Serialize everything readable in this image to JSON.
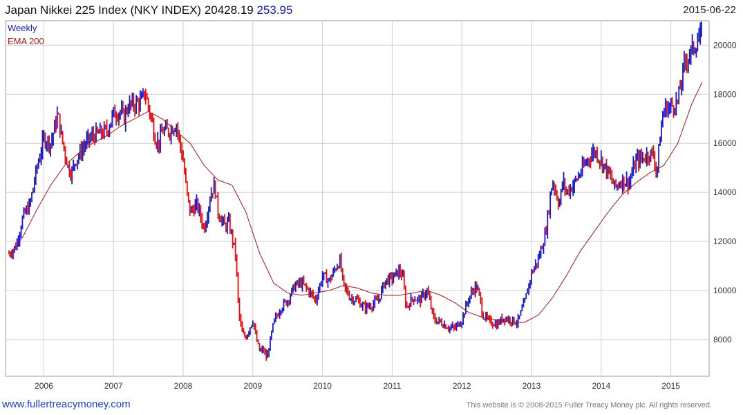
{
  "header": {
    "title": "Japan Nikkei 225 Index (NKY INDEX) 20428.19",
    "change": "253.95",
    "date": "2015-06-22"
  },
  "legend": {
    "weekly": "Weekly",
    "ema": "EMA 200"
  },
  "footer": {
    "link": "www.fullertreacymoney.com",
    "notice": "This website is © 2008-2015 Fuller Treacy Money plc. All rights reserved."
  },
  "colors": {
    "up": "#1a1acc",
    "down": "#e01010",
    "ema": "#a01818",
    "grid": "#cfcfcf"
  },
  "chart_data": {
    "type": "line",
    "ylim": [
      6500,
      21000
    ],
    "xlim": [
      2005.45,
      2015.55
    ],
    "grid": true,
    "legend_position": "top-left",
    "y_ticks": [
      8000,
      10000,
      12000,
      14000,
      16000,
      18000,
      20000
    ],
    "x_ticks": [
      {
        "label": "2006",
        "value": 2006.0
      },
      {
        "label": "2007",
        "value": 2007.0
      },
      {
        "label": "2008",
        "value": 2008.0
      },
      {
        "label": "2009",
        "value": 2009.0
      },
      {
        "label": "2010",
        "value": 2010.0
      },
      {
        "label": "2011",
        "value": 2011.0
      },
      {
        "label": "2012",
        "value": 2012.0
      },
      {
        "label": "2013",
        "value": 2013.0
      },
      {
        "label": "2014",
        "value": 2014.0
      },
      {
        "label": "2015",
        "value": 2015.0
      }
    ],
    "series": [
      {
        "name": "Weekly",
        "x": [
          2005.5,
          2005.6,
          2005.7,
          2005.8,
          2005.9,
          2006.0,
          2006.1,
          2006.2,
          2006.25,
          2006.35,
          2006.4,
          2006.45,
          2006.5,
          2006.6,
          2006.7,
          2006.8,
          2006.9,
          2007.0,
          2007.1,
          2007.15,
          2007.2,
          2007.3,
          2007.4,
          2007.45,
          2007.5,
          2007.55,
          2007.6,
          2007.65,
          2007.7,
          2007.8,
          2007.9,
          2008.0,
          2008.05,
          2008.1,
          2008.2,
          2008.3,
          2008.4,
          2008.45,
          2008.5,
          2008.6,
          2008.65,
          2008.7,
          2008.75,
          2008.8,
          2008.85,
          2008.9,
          2009.0,
          2009.05,
          2009.1,
          2009.15,
          2009.2,
          2009.3,
          2009.4,
          2009.5,
          2009.6,
          2009.7,
          2009.8,
          2009.9,
          2010.0,
          2010.1,
          2010.2,
          2010.25,
          2010.3,
          2010.4,
          2010.5,
          2010.6,
          2010.7,
          2010.8,
          2010.9,
          2011.0,
          2011.1,
          2011.15,
          2011.2,
          2011.3,
          2011.4,
          2011.5,
          2011.55,
          2011.6,
          2011.7,
          2011.8,
          2011.9,
          2012.0,
          2012.1,
          2012.2,
          2012.25,
          2012.3,
          2012.4,
          2012.45,
          2012.5,
          2012.6,
          2012.7,
          2012.8,
          2012.9,
          2013.0,
          2013.1,
          2013.2,
          2013.3,
          2013.35,
          2013.4,
          2013.45,
          2013.5,
          2013.6,
          2013.7,
          2013.8,
          2013.9,
          2014.0,
          2014.1,
          2014.2,
          2014.3,
          2014.4,
          2014.5,
          2014.6,
          2014.7,
          2014.75,
          2014.8,
          2014.85,
          2014.9,
          2015.0,
          2015.1,
          2015.2,
          2015.3,
          2015.35,
          2015.4,
          2015.45
        ],
        "y": [
          11500,
          11800,
          13000,
          13500,
          15000,
          16200,
          16000,
          17200,
          16300,
          15000,
          14800,
          15300,
          15500,
          16000,
          16300,
          16400,
          16500,
          17200,
          17300,
          17000,
          17500,
          17600,
          17700,
          18100,
          17500,
          16900,
          16200,
          16000,
          16500,
          16500,
          16800,
          15300,
          14000,
          13200,
          13500,
          12500,
          14000,
          14300,
          13200,
          12600,
          12800,
          12200,
          11500,
          9000,
          8200,
          8100,
          8800,
          8000,
          7500,
          7600,
          7200,
          8700,
          9300,
          9600,
          10200,
          10300,
          10000,
          9600,
          10600,
          10400,
          11000,
          11200,
          10200,
          9700,
          9600,
          9300,
          9400,
          9600,
          10400,
          10500,
          10800,
          10600,
          9300,
          9700,
          9600,
          10000,
          9400,
          8800,
          8700,
          8500,
          8450,
          8800,
          9700,
          10200,
          9800,
          9000,
          8700,
          8700,
          8600,
          8900,
          8800,
          8700,
          9500,
          10700,
          11300,
          12300,
          14500,
          14000,
          13500,
          14500,
          14000,
          14300,
          14800,
          15300,
          15700,
          15300,
          14800,
          14200,
          14500,
          14400,
          15300,
          15400,
          15600,
          15500,
          14800,
          16400,
          17400,
          17500,
          17700,
          19300,
          19800,
          20000,
          20300,
          20428
        ]
      },
      {
        "name": "EMA 200",
        "x": [
          2005.5,
          2005.7,
          2005.9,
          2006.1,
          2006.3,
          2006.5,
          2006.7,
          2006.9,
          2007.1,
          2007.3,
          2007.5,
          2007.7,
          2007.9,
          2008.1,
          2008.3,
          2008.5,
          2008.7,
          2008.9,
          2009.1,
          2009.3,
          2009.5,
          2009.7,
          2009.9,
          2010.1,
          2010.3,
          2010.5,
          2010.7,
          2010.9,
          2011.1,
          2011.3,
          2011.5,
          2011.7,
          2011.9,
          2012.1,
          2012.3,
          2012.5,
          2012.7,
          2012.9,
          2013.1,
          2013.3,
          2013.5,
          2013.7,
          2013.9,
          2014.1,
          2014.3,
          2014.5,
          2014.7,
          2014.9,
          2015.1,
          2015.3,
          2015.45
        ],
        "y": [
          11400,
          12200,
          13300,
          14300,
          15100,
          15600,
          16000,
          16300,
          16700,
          17000,
          17300,
          17000,
          16500,
          16000,
          15100,
          14500,
          14300,
          13200,
          11500,
          10300,
          9900,
          9800,
          9900,
          10000,
          10200,
          10100,
          9900,
          9800,
          9800,
          9900,
          10000,
          9800,
          9500,
          9100,
          8900,
          8800,
          8700,
          8700,
          9000,
          9700,
          10600,
          11600,
          12400,
          13200,
          13900,
          14400,
          14800,
          15100,
          16000,
          17600,
          18500
        ]
      }
    ]
  }
}
